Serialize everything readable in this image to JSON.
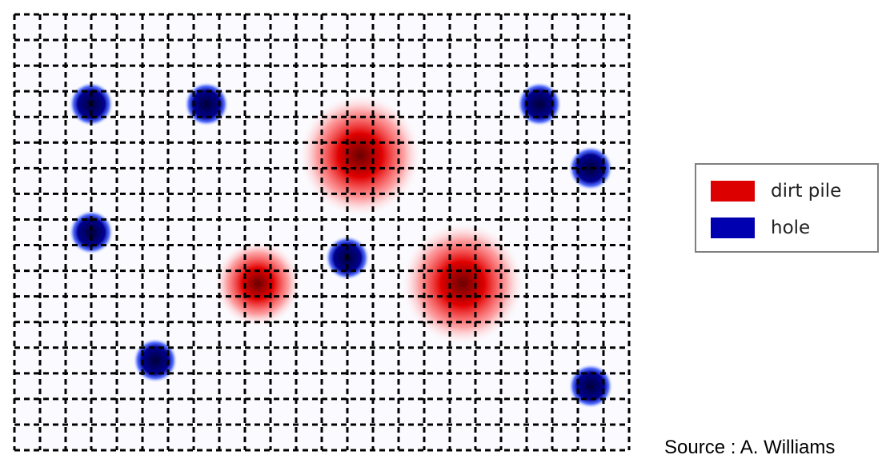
{
  "legend": {
    "items": [
      {
        "label": "dirt pile",
        "color": "#dd0000"
      },
      {
        "label": "hole",
        "color": "#0000b0"
      }
    ]
  },
  "source": "Source : A. Williams",
  "grid": {
    "columns": 24,
    "rows": 17,
    "line_style": "dashed",
    "line_color": "#000000"
  },
  "features": {
    "dirt_piles": [
      {
        "col": 13.5,
        "row": 5.5,
        "size": "large"
      },
      {
        "col": 9.5,
        "row": 10.5,
        "size": "small"
      },
      {
        "col": 17.5,
        "row": 10.5,
        "size": "large"
      }
    ],
    "holes": [
      {
        "col": 3,
        "row": 3.5
      },
      {
        "col": 7.5,
        "row": 3.5
      },
      {
        "col": 20.5,
        "row": 3.5
      },
      {
        "col": 22.5,
        "row": 6
      },
      {
        "col": 3,
        "row": 8.5
      },
      {
        "col": 13,
        "row": 9.5
      },
      {
        "col": 5.5,
        "row": 13.5
      },
      {
        "col": 22.5,
        "row": 14.5
      }
    ]
  }
}
